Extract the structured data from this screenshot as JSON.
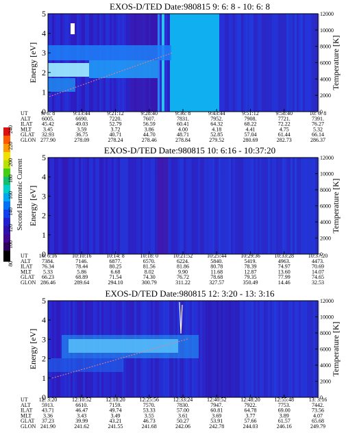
{
  "colorbar": {
    "title": "Second Harmonic Current",
    "ticks": [
      "80",
      "100",
      "120",
      "140",
      "160",
      "180",
      "200",
      "220",
      "240"
    ]
  },
  "chart_data": [
    {
      "type": "heatmap",
      "title": "EXOS-D/TED   Date:980815  9: 6: 8 - 10: 6: 8",
      "ylabel": "Energy [eV]",
      "y2label": "Temperature [K]",
      "ylim": [
        0,
        5
      ],
      "y2lim": [
        0,
        12000
      ],
      "yticks": [
        "0",
        "1",
        "2",
        "3",
        "4",
        "5"
      ],
      "y2ticks": [
        "0",
        "2000",
        "4000",
        "6000",
        "8000",
        "10000",
        "12000"
      ],
      "ephemeris": [
        {
          "label": "UT",
          "values": [
            "9: 6: 8",
            "9:13:44",
            "9:21:12",
            "9:28:40",
            "9:36: 8",
            "9:43:44",
            "9:51:12",
            "9:58:40",
            "10: 6: 8"
          ]
        },
        {
          "label": "ALT",
          "values": [
            "6005.",
            "6690.",
            "7220.",
            "7607.",
            "7831.",
            "7952.",
            "7908.",
            "7721.",
            "7391."
          ]
        },
        {
          "label": "ILAT",
          "values": [
            "45.42",
            "49.03",
            "52.79",
            "56.59",
            "60.41",
            "64.32",
            "68.22",
            "72.22",
            "76.27"
          ]
        },
        {
          "label": "MLT",
          "values": [
            "3.45",
            "3.59",
            "3.72",
            "3.86",
            "4.00",
            "4.18",
            "4.41",
            "4.75",
            "5.32"
          ]
        },
        {
          "label": "GLAT",
          "values": [
            "32.93",
            "36.75",
            "40.71",
            "44.70",
            "48.71",
            "52.85",
            "57.04",
            "61.44",
            "66.14"
          ]
        },
        {
          "label": "GLON",
          "values": [
            "277.90",
            "278.09",
            "278.24",
            "278.46",
            "278.84",
            "279.52",
            "280.69",
            "282.73",
            "286.37"
          ]
        }
      ]
    },
    {
      "type": "heatmap",
      "title": "EXOS-D/TED   Date:980815  10: 6:16 - 10:37:20",
      "ylabel": "Energy [eV]",
      "y2label": "Temperature [K]",
      "ylim": [
        0,
        5
      ],
      "y2lim": [
        0,
        12000
      ],
      "yticks": [
        "0",
        "1",
        "2",
        "3",
        "4",
        "5"
      ],
      "y2ticks": [
        "0",
        "2000",
        "4000",
        "6000",
        "8000",
        "10000",
        "12000"
      ],
      "ephemeris": [
        {
          "label": "UT",
          "values": [
            "10: 6:16",
            "10:10:16",
            "10:14: 8",
            "10:18: 0",
            "10:21:52",
            "10:25:44",
            "10:29:36",
            "10:33:28",
            "10:37:20"
          ]
        },
        {
          "label": "ALT",
          "values": [
            "7384.",
            "7146.",
            "6877.",
            "6570.",
            "6224.",
            "5840.",
            "5419.",
            "4963.",
            "4473."
          ]
        },
        {
          "label": "ILAT",
          "values": [
            "76.34",
            "78.44",
            "80.25",
            "81.56",
            "81.86",
            "80.78",
            "78.39",
            "74.97",
            "70.69"
          ]
        },
        {
          "label": "MLT",
          "values": [
            "5.33",
            "5.86",
            "6.68",
            "8.02",
            "9.90",
            "11.68",
            "12.87",
            "13.60",
            "14.07"
          ]
        },
        {
          "label": "GLAT",
          "values": [
            "66.23",
            "68.89",
            "71.54",
            "74.30",
            "76.72",
            "78.68",
            "79.35",
            "77.99",
            "74.65"
          ]
        },
        {
          "label": "GLON",
          "values": [
            "286.46",
            "289.64",
            "294.10",
            "300.79",
            "311.22",
            "327.57",
            "350.49",
            "14.46",
            "32.53"
          ]
        }
      ]
    },
    {
      "type": "heatmap",
      "title": "EXOS-D/TED   Date:980815  12: 3:20 - 13: 3:16",
      "ylabel": "Energy [eV]",
      "y2label": "Temperature [K]",
      "ylim": [
        0,
        5
      ],
      "y2lim": [
        0,
        12000
      ],
      "yticks": [
        "0",
        "1",
        "2",
        "3",
        "4",
        "5"
      ],
      "y2ticks": [
        "0",
        "2000",
        "4000",
        "6000",
        "8000",
        "10000",
        "12000"
      ],
      "ephemeris": [
        {
          "label": "UT",
          "values": [
            "12: 3:20",
            "12:10:52",
            "12:18:20",
            "12:25:56",
            "12:33:24",
            "12:40:52",
            "12:48:20",
            "12:55:48",
            "13: 3:16"
          ]
        },
        {
          "label": "ALT",
          "values": [
            "5913.",
            "6610.",
            "7159.",
            "7570.",
            "7830.",
            "7947.",
            "7922.",
            "7753.",
            "7442."
          ]
        },
        {
          "label": "ILAT",
          "values": [
            "43.71",
            "46.47",
            "49.74",
            "53.33",
            "57.00",
            "60.81",
            "64.78",
            "69.00",
            "73.56"
          ]
        },
        {
          "label": "MLT",
          "values": [
            "3.36",
            "3.43",
            "3.49",
            "3.55",
            "3.61",
            "3.69",
            "3.77",
            "3.89",
            "4.07"
          ]
        },
        {
          "label": "GLAT",
          "values": [
            "37.23",
            "39.99",
            "43.21",
            "46.73",
            "50.27",
            "53.91",
            "57.66",
            "61.57",
            "65.68"
          ]
        },
        {
          "label": "GLON",
          "values": [
            "241.90",
            "241.62",
            "241.55",
            "241.68",
            "242.06",
            "242.78",
            "244.03",
            "246.16",
            "249.79"
          ]
        }
      ]
    }
  ]
}
